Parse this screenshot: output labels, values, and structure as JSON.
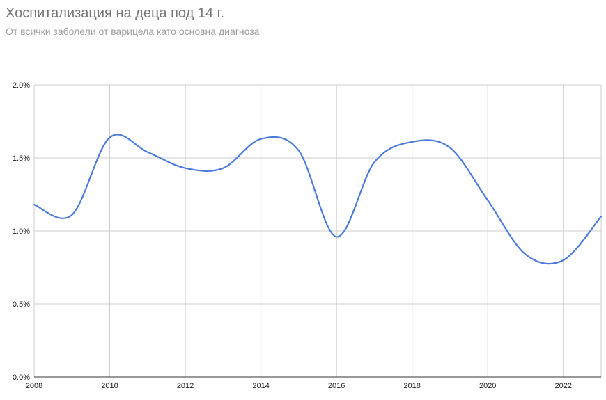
{
  "title": "Хоспитализация на деца под 14 г.",
  "subtitle": "От всички заболели от варицела като основна диагноза",
  "chart_data": {
    "type": "line",
    "title": "Хоспитализация на деца под 14 г.",
    "subtitle": "От всички заболели от варицела като основна диагноза",
    "xlabel": "",
    "ylabel": "",
    "x": [
      2008,
      2009,
      2010,
      2011,
      2012,
      2013,
      2014,
      2015,
      2016,
      2017,
      2018,
      2019,
      2020,
      2021,
      2022,
      2023
    ],
    "series": [
      {
        "values": [
          1.18,
          1.11,
          1.64,
          1.54,
          1.43,
          1.43,
          1.63,
          1.55,
          0.96,
          1.47,
          1.61,
          1.57,
          1.21,
          0.84,
          0.8,
          1.1
        ],
        "color": "#4a7bdc"
      }
    ],
    "xlim": [
      2008,
      2023
    ],
    "ylim": [
      0,
      2.0
    ],
    "x_ticks": [
      2008,
      2010,
      2012,
      2014,
      2016,
      2018,
      2020,
      2022
    ],
    "x_tick_labels": [
      "2008",
      "2010",
      "2012",
      "2014",
      "2016",
      "2018",
      "2020",
      "2022"
    ],
    "y_ticks": [
      0,
      0.5,
      1.0,
      1.5,
      2.0
    ],
    "y_tick_labels": [
      "0.0%",
      "0.5%",
      "1.0%",
      "1.5%",
      "2.0%"
    ],
    "grid": true,
    "legend": "none",
    "colors": {
      "line": "#4a7bdc",
      "grid": "#cccccc",
      "baseline": "#333333",
      "title": "#757575",
      "subtitle": "#9e9e9e"
    }
  }
}
